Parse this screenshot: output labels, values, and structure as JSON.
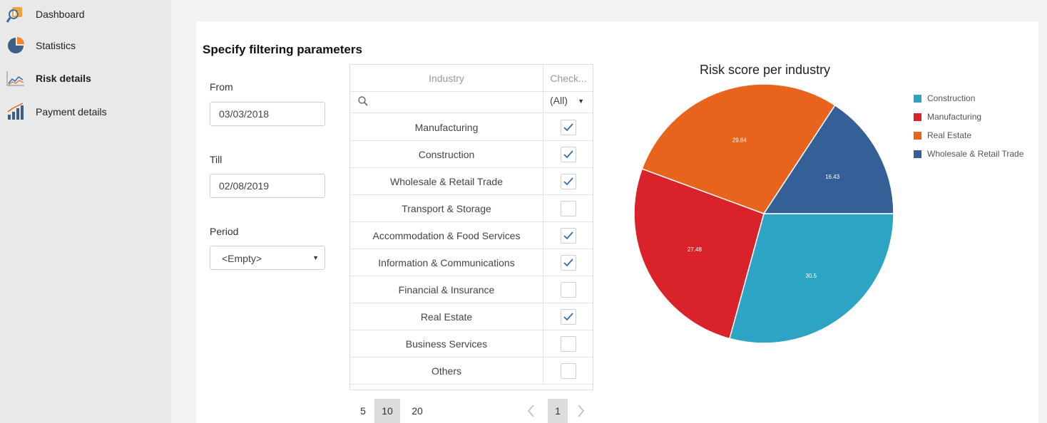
{
  "sidebar": {
    "items": [
      {
        "label": "Dashboard",
        "icon": "dashboard-icon",
        "active": false
      },
      {
        "label": "Statistics",
        "icon": "pie-chart-icon",
        "active": false
      },
      {
        "label": "Risk details",
        "icon": "line-chart-icon",
        "active": true
      },
      {
        "label": "Payment details",
        "icon": "bar-chart-icon",
        "active": false
      }
    ]
  },
  "filters": {
    "title": "Specify filtering parameters",
    "from_label": "From",
    "from_value": "03/03/2018",
    "till_label": "Till",
    "till_value": "02/08/2019",
    "period_label": "Period",
    "period_value": "<Empty>"
  },
  "grid": {
    "columns": [
      "Industry",
      "Check..."
    ],
    "filter_value": "(All)",
    "rows": [
      {
        "industry": "Manufacturing",
        "checked": true
      },
      {
        "industry": "Construction",
        "checked": true
      },
      {
        "industry": "Wholesale & Retail Trade",
        "checked": true
      },
      {
        "industry": "Transport & Storage",
        "checked": false
      },
      {
        "industry": "Accommodation & Food Services",
        "checked": true
      },
      {
        "industry": "Information & Communications",
        "checked": true
      },
      {
        "industry": "Financial & Insurance",
        "checked": false
      },
      {
        "industry": "Real Estate",
        "checked": true
      },
      {
        "industry": "Business Services",
        "checked": false
      },
      {
        "industry": "Others",
        "checked": false
      }
    ],
    "page_sizes": [
      "5",
      "10",
      "20"
    ],
    "selected_page_size": "10",
    "current_page": "1"
  },
  "chart_data": {
    "type": "pie",
    "title": "Risk score per industry",
    "legend_position": "right",
    "slices": [
      {
        "label": "Construction",
        "value": 30.5,
        "color": "#2ea4c4"
      },
      {
        "label": "Manufacturing",
        "value": 27.48,
        "color": "#d9222a"
      },
      {
        "label": "Real Estate",
        "value": 29.84,
        "color": "#e8641d"
      },
      {
        "label": "Wholesale & Retail Trade",
        "value": 16.43,
        "color": "#355f97"
      }
    ]
  }
}
